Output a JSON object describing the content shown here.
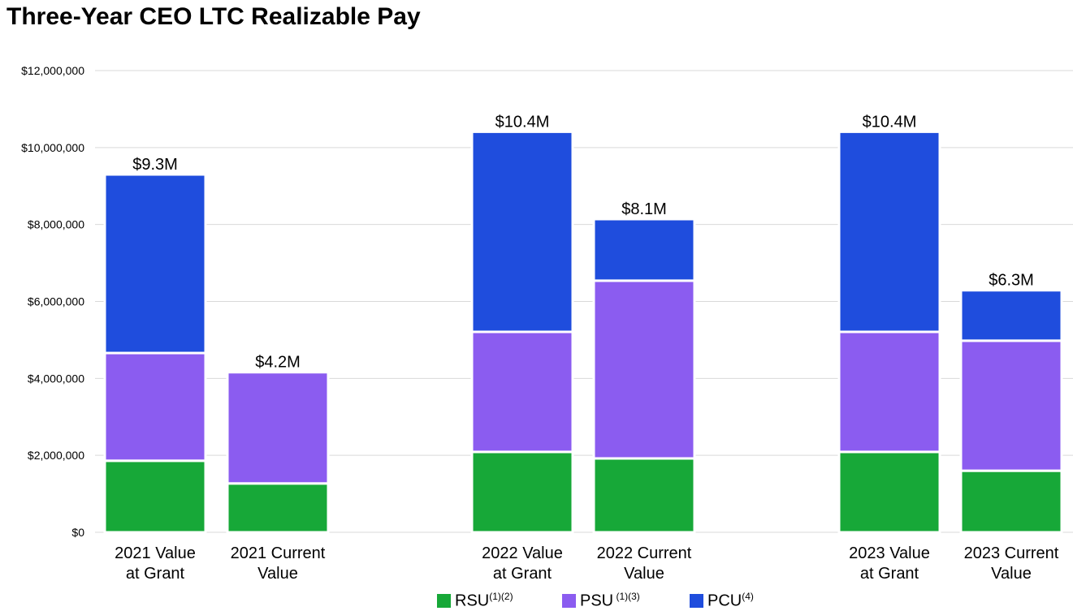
{
  "chart_data": {
    "type": "bar",
    "stacked": true,
    "title": "Three-Year CEO LTC Realizable Pay",
    "categories": [
      [
        "2021 Value",
        "at Grant"
      ],
      [
        "2021 Current",
        "Value"
      ],
      [
        "2022 Value",
        "at Grant"
      ],
      [
        "2022 Current",
        "Value"
      ],
      [
        "2023 Value",
        "at Grant"
      ],
      [
        "2023 Current",
        "Value"
      ]
    ],
    "series": [
      {
        "name": "RSU",
        "sup": "(1)(2)",
        "color": "#17a838",
        "values": [
          1860000,
          1270000,
          2090000,
          1920000,
          2090000,
          1600000
        ]
      },
      {
        "name": "PSU",
        "sup": " (1)(3)",
        "color": "#8b5cf0",
        "values": [
          2800000,
          2890000,
          3120000,
          4620000,
          3120000,
          3380000
        ]
      },
      {
        "name": "PCU",
        "sup": "(4)",
        "color": "#1f4ddd",
        "values": [
          4640000,
          0,
          5200000,
          1600000,
          5200000,
          1310000
        ]
      }
    ],
    "total_labels": [
      "$9.3M",
      "$4.2M",
      "$10.4M",
      "$8.1M",
      "$10.4M",
      "$6.3M"
    ],
    "yticks": [
      "$0",
      "$2,000,000",
      "$4,000,000",
      "$6,000,000",
      "$8,000,000",
      "$10,000,000",
      "$12,000,000"
    ],
    "ylim": [
      0,
      12000000
    ],
    "grid": true,
    "legend": "bottom"
  }
}
